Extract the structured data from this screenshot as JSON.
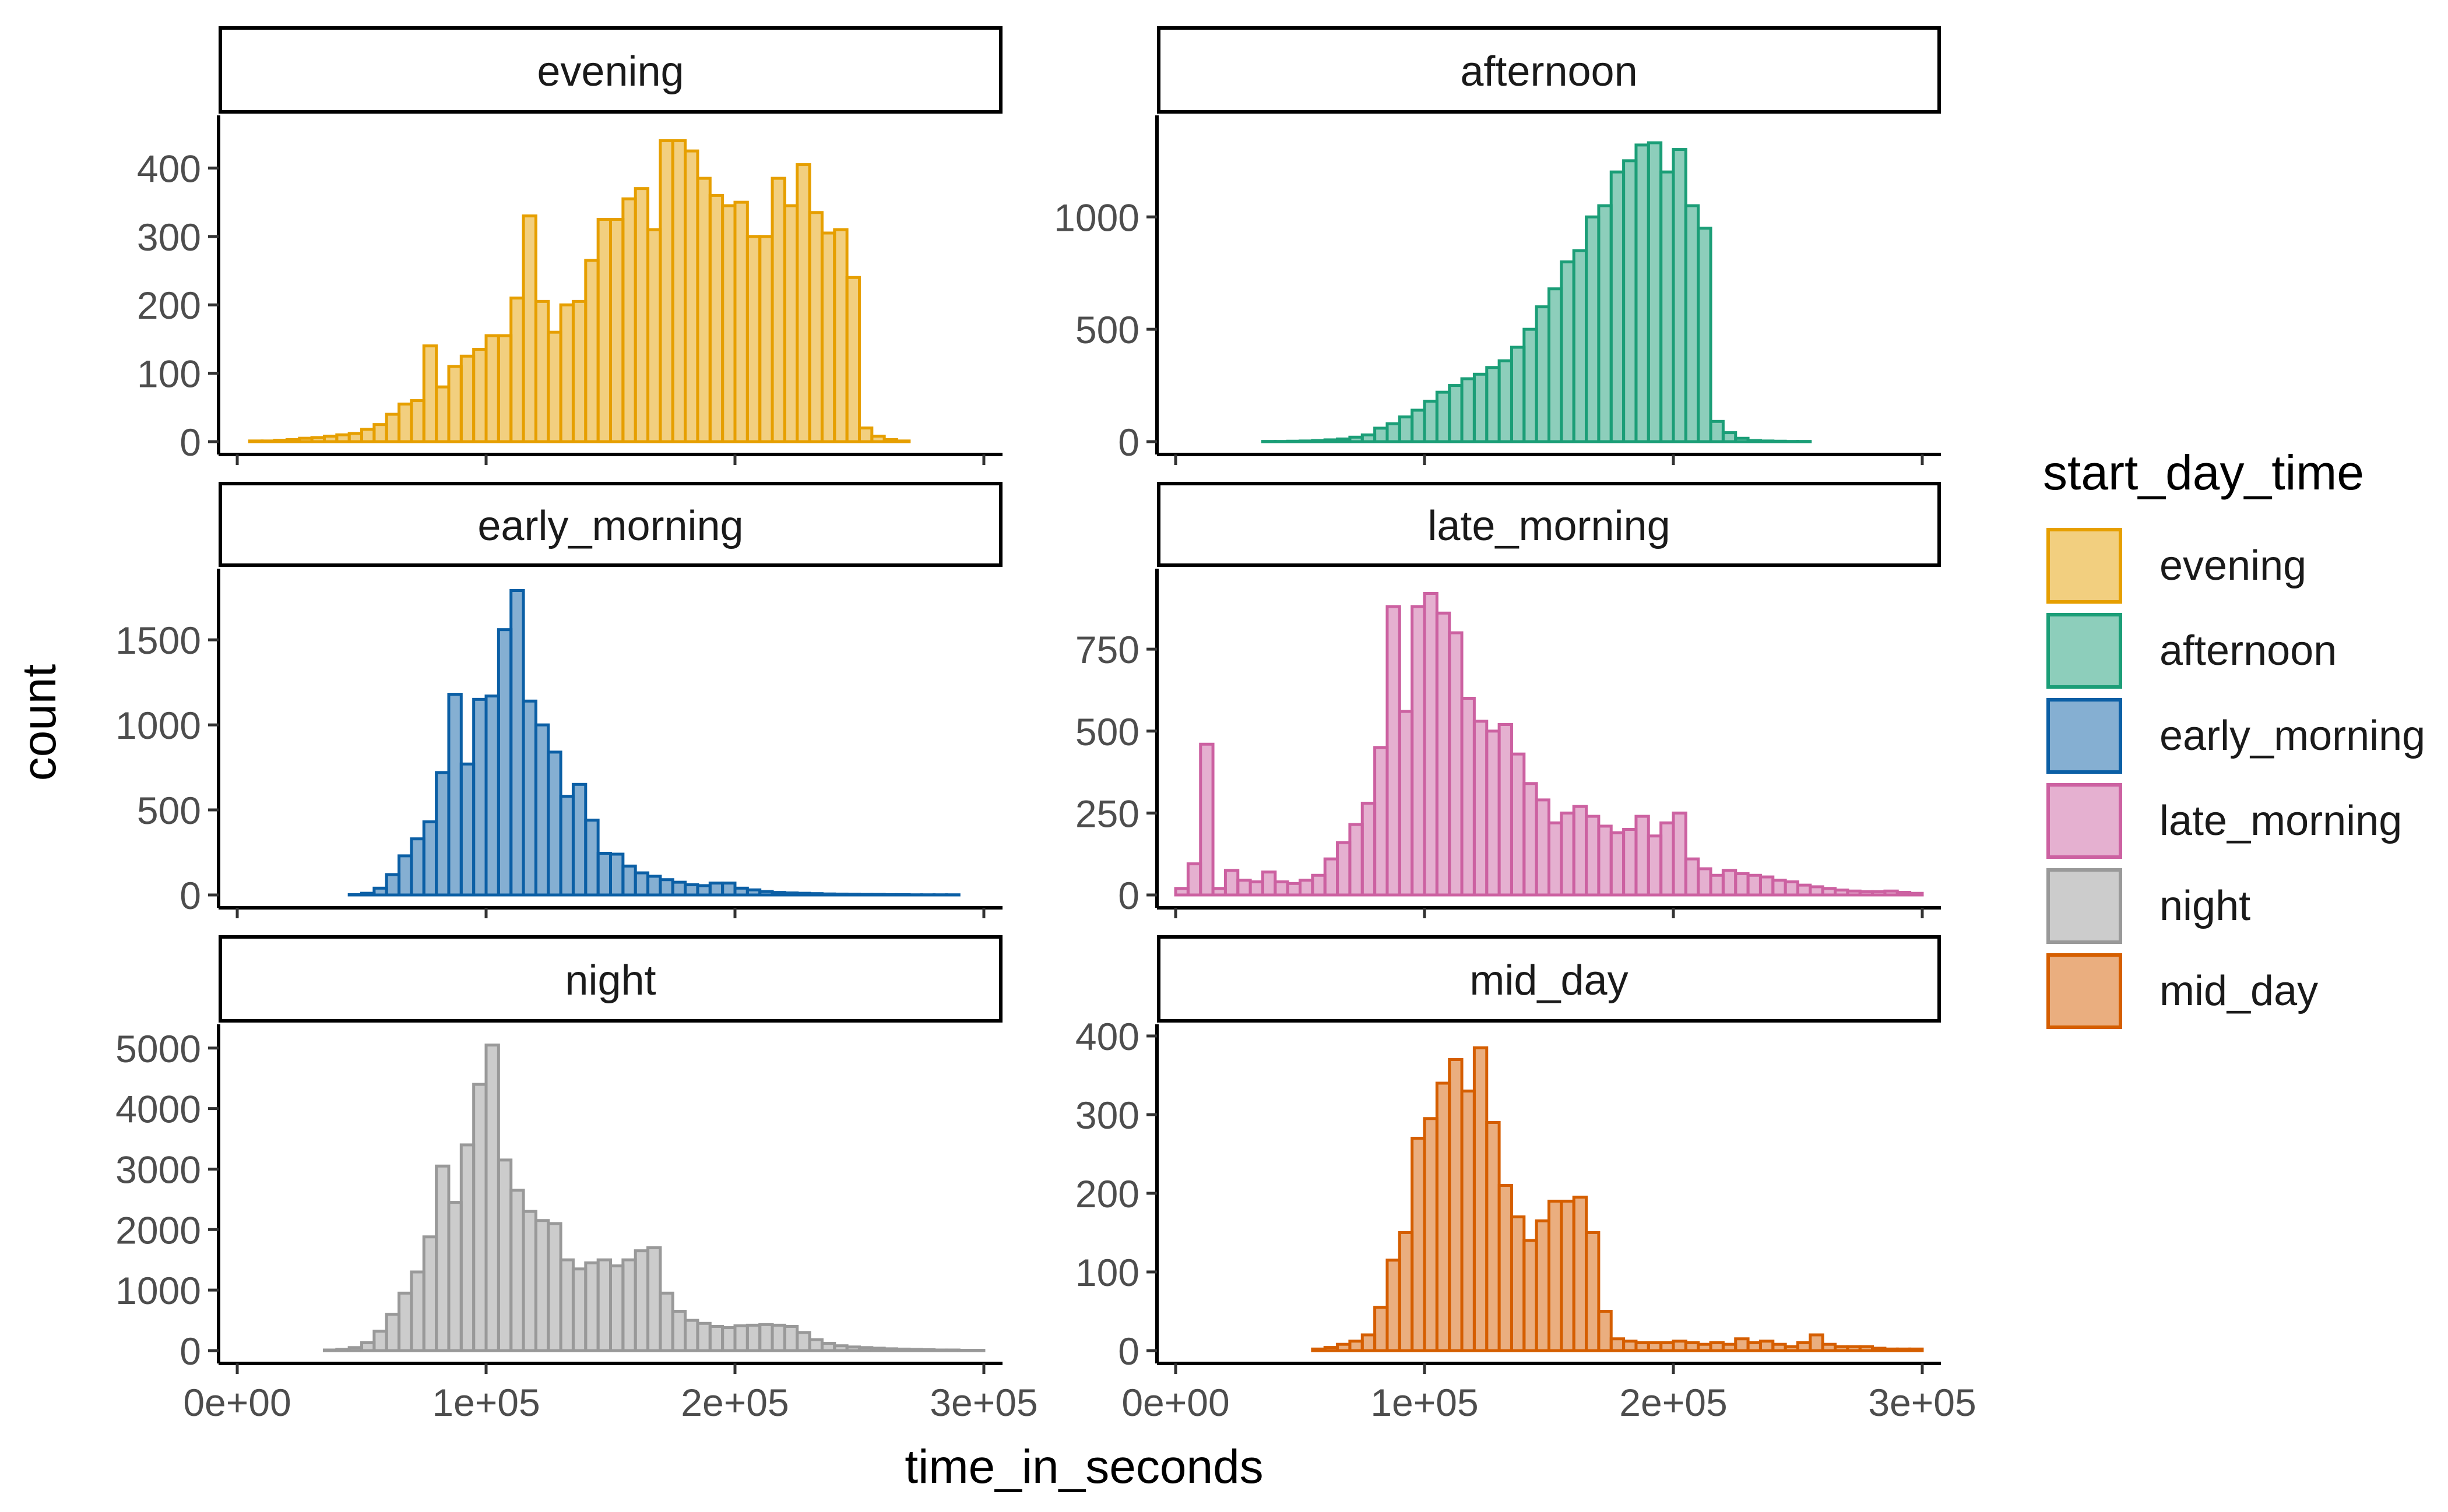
{
  "chart_data": {
    "type": "bar",
    "xlabel": "time_in_seconds",
    "ylabel": "count",
    "legend": {
      "title": "start_day_time",
      "placement": "right",
      "entries": [
        "evening",
        "afternoon",
        "early_morning",
        "late_morning",
        "night",
        "mid_day"
      ]
    },
    "x_range": [
      0,
      300000
    ],
    "x_ticks": [
      0,
      100000,
      200000,
      300000
    ],
    "x_tick_labels": [
      "0e+00",
      "1e+05",
      "2e+05",
      "3e+05"
    ],
    "bin_width": 5000,
    "grid": false,
    "colors": {
      "evening": "#E69F00",
      "afternoon": "#1B9E77",
      "early_morning": "#0B5FA5",
      "late_morning": "#CC61A1",
      "night": "#999999",
      "mid_day": "#D55E00"
    },
    "panels": [
      {
        "name": "evening",
        "ylim": [
          0,
          460
        ],
        "yticks": [
          0,
          100,
          200,
          300,
          400
        ],
        "x": [
          0,
          5000,
          10000,
          15000,
          20000,
          25000,
          30000,
          35000,
          40000,
          45000,
          50000,
          55000,
          60000,
          65000,
          70000,
          75000,
          80000,
          85000,
          90000,
          95000,
          100000,
          105000,
          110000,
          115000,
          120000,
          125000,
          130000,
          135000,
          140000,
          145000,
          150000,
          155000,
          160000,
          165000,
          170000,
          175000,
          180000,
          185000,
          190000,
          195000,
          200000,
          205000,
          210000,
          215000,
          220000,
          225000,
          230000,
          235000,
          240000,
          245000,
          250000,
          255000,
          260000,
          265000,
          270000,
          275000,
          280000,
          285000,
          290000,
          295000
        ],
        "counts": [
          0,
          1,
          1,
          2,
          3,
          5,
          6,
          8,
          10,
          12,
          18,
          25,
          40,
          55,
          60,
          140,
          80,
          110,
          125,
          135,
          155,
          155,
          210,
          330,
          205,
          160,
          200,
          205,
          265,
          325,
          325,
          355,
          370,
          310,
          440,
          440,
          425,
          385,
          360,
          345,
          350,
          300,
          300,
          385,
          345,
          405,
          335,
          305,
          310,
          240,
          20,
          8,
          3,
          1,
          0,
          0,
          0,
          0,
          0,
          0
        ]
      },
      {
        "name": "afternoon",
        "ylim": [
          0,
          1400
        ],
        "yticks": [
          0,
          500,
          1000
        ],
        "x": [
          0,
          5000,
          10000,
          15000,
          20000,
          25000,
          30000,
          35000,
          40000,
          45000,
          50000,
          55000,
          60000,
          65000,
          70000,
          75000,
          80000,
          85000,
          90000,
          95000,
          100000,
          105000,
          110000,
          115000,
          120000,
          125000,
          130000,
          135000,
          140000,
          145000,
          150000,
          155000,
          160000,
          165000,
          170000,
          175000,
          180000,
          185000,
          190000,
          195000,
          200000,
          205000,
          210000,
          215000,
          220000,
          225000,
          230000,
          235000,
          240000,
          245000,
          250000,
          255000,
          260000,
          265000,
          270000,
          275000,
          280000,
          285000,
          290000,
          295000
        ],
        "counts": [
          0,
          0,
          0,
          0,
          0,
          0,
          0,
          1,
          1,
          2,
          3,
          5,
          8,
          12,
          20,
          30,
          60,
          80,
          110,
          140,
          180,
          220,
          250,
          280,
          300,
          330,
          360,
          420,
          500,
          600,
          680,
          800,
          850,
          1000,
          1050,
          1200,
          1250,
          1320,
          1330,
          1200,
          1300,
          1050,
          950,
          90,
          40,
          15,
          5,
          3,
          2,
          1,
          1,
          0,
          0,
          0,
          0,
          0,
          0,
          0,
          0,
          0
        ]
      },
      {
        "name": "early_morning",
        "ylim": [
          0,
          1850
        ],
        "yticks": [
          0,
          500,
          1000,
          1500
        ],
        "x": [
          0,
          5000,
          10000,
          15000,
          20000,
          25000,
          30000,
          35000,
          40000,
          45000,
          50000,
          55000,
          60000,
          65000,
          70000,
          75000,
          80000,
          85000,
          90000,
          95000,
          100000,
          105000,
          110000,
          115000,
          120000,
          125000,
          130000,
          135000,
          140000,
          145000,
          150000,
          155000,
          160000,
          165000,
          170000,
          175000,
          180000,
          185000,
          190000,
          195000,
          200000,
          205000,
          210000,
          215000,
          220000,
          225000,
          230000,
          235000,
          240000,
          245000,
          250000,
          255000,
          260000,
          265000,
          270000,
          275000,
          280000,
          285000,
          290000,
          295000
        ],
        "counts": [
          0,
          0,
          0,
          0,
          0,
          0,
          0,
          0,
          0,
          2,
          10,
          40,
          120,
          230,
          330,
          430,
          720,
          1180,
          770,
          1150,
          1170,
          1560,
          1790,
          1140,
          1000,
          840,
          580,
          650,
          440,
          245,
          240,
          170,
          130,
          110,
          90,
          75,
          60,
          55,
          70,
          70,
          40,
          30,
          20,
          15,
          12,
          10,
          8,
          6,
          5,
          4,
          3,
          3,
          2,
          2,
          1,
          1,
          1,
          1,
          0,
          0
        ]
      },
      {
        "name": "late_morning",
        "ylim": [
          0,
          960
        ],
        "yticks": [
          0,
          250,
          500,
          750
        ],
        "x": [
          0,
          5000,
          10000,
          15000,
          20000,
          25000,
          30000,
          35000,
          40000,
          45000,
          50000,
          55000,
          60000,
          65000,
          70000,
          75000,
          80000,
          85000,
          90000,
          95000,
          100000,
          105000,
          110000,
          115000,
          120000,
          125000,
          130000,
          135000,
          140000,
          145000,
          150000,
          155000,
          160000,
          165000,
          170000,
          175000,
          180000,
          185000,
          190000,
          195000,
          200000,
          205000,
          210000,
          215000,
          220000,
          225000,
          230000,
          235000,
          240000,
          245000,
          250000,
          255000,
          260000,
          265000,
          270000,
          275000,
          280000,
          285000,
          290000,
          295000
        ],
        "counts": [
          20,
          95,
          460,
          20,
          75,
          45,
          40,
          70,
          40,
          35,
          45,
          60,
          110,
          160,
          215,
          280,
          450,
          880,
          560,
          880,
          920,
          860,
          800,
          600,
          530,
          500,
          520,
          430,
          340,
          290,
          220,
          250,
          270,
          240,
          210,
          190,
          200,
          240,
          180,
          220,
          250,
          110,
          80,
          60,
          75,
          65,
          60,
          55,
          45,
          40,
          30,
          25,
          20,
          15,
          12,
          10,
          10,
          12,
          8,
          5
        ]
      },
      {
        "name": "night",
        "ylim": [
          0,
          5200
        ],
        "yticks": [
          0,
          1000,
          2000,
          3000,
          4000,
          5000
        ],
        "x": [
          0,
          5000,
          10000,
          15000,
          20000,
          25000,
          30000,
          35000,
          40000,
          45000,
          50000,
          55000,
          60000,
          65000,
          70000,
          75000,
          80000,
          85000,
          90000,
          95000,
          100000,
          105000,
          110000,
          115000,
          120000,
          125000,
          130000,
          135000,
          140000,
          145000,
          150000,
          155000,
          160000,
          165000,
          170000,
          175000,
          180000,
          185000,
          190000,
          195000,
          200000,
          205000,
          210000,
          215000,
          220000,
          225000,
          230000,
          235000,
          240000,
          245000,
          250000,
          255000,
          260000,
          265000,
          270000,
          275000,
          280000,
          285000,
          290000,
          295000
        ],
        "counts": [
          0,
          0,
          0,
          0,
          0,
          0,
          0,
          10,
          20,
          50,
          130,
          320,
          600,
          950,
          1300,
          1880,
          3050,
          2450,
          3400,
          4400,
          5050,
          3150,
          2650,
          2300,
          2150,
          2100,
          1500,
          1350,
          1450,
          1500,
          1400,
          1500,
          1650,
          1700,
          950,
          650,
          500,
          450,
          400,
          380,
          410,
          420,
          430,
          420,
          400,
          300,
          180,
          120,
          80,
          60,
          50,
          40,
          30,
          25,
          20,
          15,
          10,
          10,
          5,
          5
        ]
      },
      {
        "name": "mid_day",
        "ylim": [
          0,
          400
        ],
        "yticks": [
          0,
          100,
          200,
          300,
          400
        ],
        "x": [
          0,
          5000,
          10000,
          15000,
          20000,
          25000,
          30000,
          35000,
          40000,
          45000,
          50000,
          55000,
          60000,
          65000,
          70000,
          75000,
          80000,
          85000,
          90000,
          95000,
          100000,
          105000,
          110000,
          115000,
          120000,
          125000,
          130000,
          135000,
          140000,
          145000,
          150000,
          155000,
          160000,
          165000,
          170000,
          175000,
          180000,
          185000,
          190000,
          195000,
          200000,
          205000,
          210000,
          215000,
          220000,
          225000,
          230000,
          235000,
          240000,
          245000,
          250000,
          255000,
          260000,
          265000,
          270000,
          275000,
          280000,
          285000,
          290000,
          295000
        ],
        "counts": [
          0,
          0,
          0,
          0,
          0,
          0,
          0,
          0,
          0,
          0,
          0,
          2,
          4,
          8,
          12,
          20,
          55,
          115,
          150,
          270,
          295,
          340,
          370,
          330,
          385,
          290,
          210,
          170,
          140,
          165,
          190,
          190,
          195,
          150,
          50,
          15,
          12,
          10,
          10,
          10,
          12,
          10,
          8,
          10,
          8,
          15,
          10,
          12,
          8,
          5,
          10,
          20,
          8,
          5,
          5,
          5,
          3,
          2,
          2,
          2
        ]
      }
    ]
  }
}
